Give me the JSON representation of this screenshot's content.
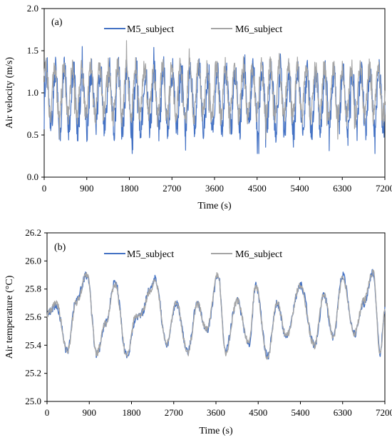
{
  "chart_data": [
    {
      "type": "line",
      "panel_label": "(a)",
      "xlabel": "Time (s)",
      "ylabel": "Air velocity (m/s)",
      "xlim": [
        0,
        7200
      ],
      "ylim": [
        0.0,
        2.0
      ],
      "x_ticks": [
        "0",
        "900",
        "1800",
        "2700",
        "3600",
        "4500",
        "5400",
        "6300",
        "7200"
      ],
      "y_ticks": [
        "0.0",
        "0.5",
        "1.0",
        "1.5",
        "2.0"
      ],
      "grid": false,
      "legend_position": "top-center",
      "period_s": 190,
      "series": [
        {
          "name": "M5_subject",
          "color": "#4472C4",
          "mean": 0.92,
          "amplitude": 0.34,
          "min": 0.28,
          "max": 1.55,
          "jitter": 0.17
        },
        {
          "name": "M6_subject",
          "color": "#A5A5A5",
          "mean": 1.02,
          "amplitude": 0.3,
          "min": 0.45,
          "max": 1.62,
          "jitter": 0.12
        }
      ]
    },
    {
      "type": "line",
      "panel_label": "(b)",
      "xlabel": "Time (s)",
      "ylabel": "Air temperature (°C)",
      "xlim": [
        0,
        7200
      ],
      "ylim": [
        25.0,
        26.2
      ],
      "x_ticks": [
        "0",
        "900",
        "1800",
        "2700",
        "3600",
        "4500",
        "5400",
        "6300",
        "7200"
      ],
      "y_ticks": [
        "25.0",
        "25.2",
        "25.4",
        "25.6",
        "25.8",
        "26.0",
        "26.2"
      ],
      "grid": false,
      "legend_position": "top-center",
      "peaks": [
        [
          0,
          25.62
        ],
        [
          200,
          25.68
        ],
        [
          430,
          25.36
        ],
        [
          620,
          25.72
        ],
        [
          850,
          25.9
        ],
        [
          1060,
          25.33
        ],
        [
          1250,
          25.56
        ],
        [
          1450,
          25.85
        ],
        [
          1700,
          25.32
        ],
        [
          1900,
          25.6
        ],
        [
          2000,
          25.62
        ],
        [
          2200,
          25.8
        ],
        [
          2300,
          25.88
        ],
        [
          2550,
          25.4
        ],
        [
          2750,
          25.7
        ],
        [
          3000,
          25.36
        ],
        [
          3200,
          25.7
        ],
        [
          3400,
          25.5
        ],
        [
          3650,
          25.9
        ],
        [
          3800,
          25.36
        ],
        [
          4050,
          25.72
        ],
        [
          4300,
          25.4
        ],
        [
          4450,
          25.82
        ],
        [
          4700,
          25.32
        ],
        [
          4900,
          25.7
        ],
        [
          5100,
          25.45
        ],
        [
          5400,
          25.83
        ],
        [
          5700,
          25.4
        ],
        [
          5900,
          25.75
        ],
        [
          6100,
          25.46
        ],
        [
          6300,
          25.9
        ],
        [
          6550,
          25.48
        ],
        [
          6750,
          25.7
        ],
        [
          6950,
          25.92
        ],
        [
          7100,
          25.35
        ],
        [
          7200,
          25.66
        ]
      ],
      "series": [
        {
          "name": "M5_subject",
          "color": "#4472C4",
          "offset": 0.0,
          "noise": 0.03
        },
        {
          "name": "M6_subject",
          "color": "#A5A5A5",
          "offset": 0.015,
          "noise": 0.025
        }
      ]
    }
  ]
}
